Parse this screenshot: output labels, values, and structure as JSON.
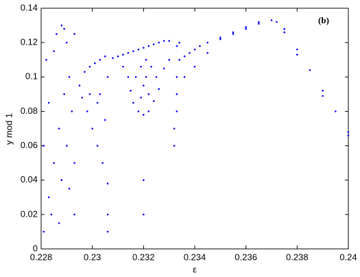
{
  "chart_data": {
    "type": "scatter",
    "xlabel": "ε",
    "ylabel": "y mod 1",
    "annotation": "(b)",
    "color": "#0000ff",
    "xlim": [
      0.228,
      0.24
    ],
    "xticks": [
      0.228,
      0.23,
      0.232,
      0.234,
      0.236,
      0.238,
      0.24
    ],
    "ylim": [
      0,
      0.14
    ],
    "yticks": [
      0,
      0.02,
      0.04,
      0.06,
      0.08,
      0.1,
      0.12,
      0.14
    ],
    "grid": false,
    "x": [
      0.2281,
      0.2283,
      0.2285,
      0.2287,
      0.2289,
      0.2282,
      0.2286,
      0.2288,
      0.229,
      0.2291,
      0.229,
      0.2284,
      0.2288,
      0.2292,
      0.2283,
      0.2285,
      0.2289,
      0.2281,
      0.2287,
      0.2291,
      0.2295,
      0.2296,
      0.2297,
      0.2298,
      0.2299,
      0.23,
      0.2301,
      0.2302,
      0.2303,
      0.2304,
      0.2305,
      0.2306,
      0.2303,
      0.2305,
      0.2299,
      0.2306,
      0.2302,
      0.2293,
      0.2293,
      0.2306,
      0.2306,
      0.2293,
      0.2308,
      0.231,
      0.2312,
      0.2314,
      0.2316,
      0.2318,
      0.232,
      0.2322,
      0.2324,
      0.2326,
      0.2328,
      0.233,
      0.2312,
      0.2314,
      0.2315,
      0.2316,
      0.2318,
      0.232,
      0.2322,
      0.2324,
      0.2326,
      0.2325,
      0.2323,
      0.2321,
      0.2319,
      0.2317,
      0.232,
      0.2322,
      0.2319,
      0.2321,
      0.2328,
      0.233,
      0.2332,
      0.2332,
      0.2333,
      0.2333,
      0.2333,
      0.2334,
      0.2334,
      0.2333,
      0.232,
      0.232,
      0.2336,
      0.2338,
      0.234,
      0.2342,
      0.2345,
      0.235,
      0.2355,
      0.236,
      0.2365,
      0.237,
      0.2372,
      0.2375,
      0.238,
      0.2385,
      0.239,
      0.2395,
      0.24,
      0.2336,
      0.234,
      0.2345,
      0.235,
      0.2355,
      0.236,
      0.2365,
      0.2375,
      0.238,
      0.239,
      0.24
    ],
    "values": [
      0.01,
      0.03,
      0.05,
      0.07,
      0.09,
      0.11,
      0.125,
      0.13,
      0.12,
      0.1,
      0.06,
      0.02,
      0.04,
      0.08,
      0.085,
      0.115,
      0.128,
      0.06,
      0.015,
      0.035,
      0.095,
      0.088,
      0.103,
      0.08,
      0.106,
      0.07,
      0.108,
      0.06,
      0.11,
      0.05,
      0.112,
      0.038,
      0.09,
      0.075,
      0.09,
      0.1,
      0.085,
      0.02,
      0.05,
      0.01,
      0.02,
      0.125,
      0.111,
      0.112,
      0.113,
      0.114,
      0.115,
      0.116,
      0.117,
      0.118,
      0.119,
      0.12,
      0.121,
      0.121,
      0.106,
      0.1,
      0.092,
      0.085,
      0.08,
      0.078,
      0.08,
      0.086,
      0.093,
      0.1,
      0.106,
      0.11,
      0.106,
      0.1,
      0.095,
      0.09,
      0.088,
      0.1,
      0.105,
      0.11,
      0.06,
      0.07,
      0.08,
      0.09,
      0.1,
      0.11,
      0.12,
      0.118,
      0.02,
      0.04,
      0.112,
      0.114,
      0.116,
      0.118,
      0.12,
      0.123,
      0.126,
      0.129,
      0.132,
      0.133,
      0.132,
      0.128,
      0.116,
      0.104,
      0.092,
      0.08,
      0.068,
      0.1,
      0.106,
      0.114,
      0.122,
      0.125,
      0.128,
      0.131,
      0.126,
      0.113,
      0.089,
      0.066
    ]
  }
}
